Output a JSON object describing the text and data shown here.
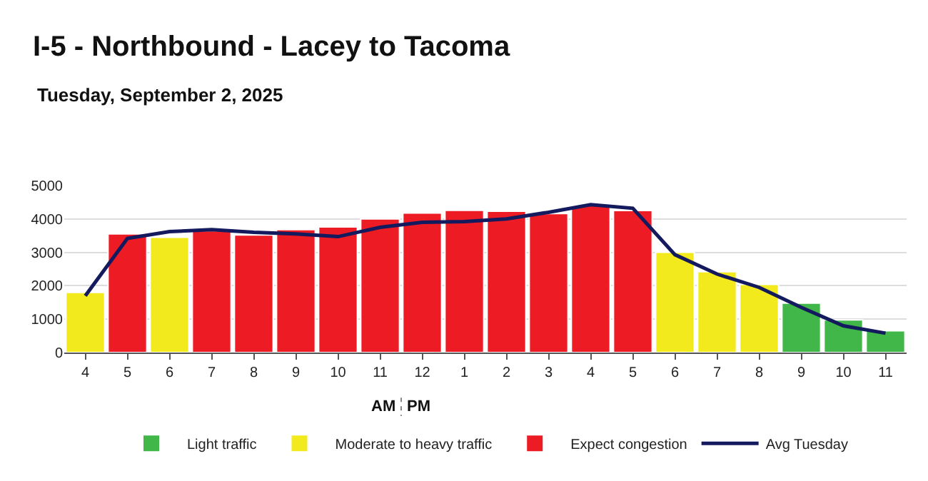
{
  "chart_data": {
    "type": "bar",
    "title": "I-5 - Northbound - Lacey to Tacoma",
    "subtitle": "Tuesday, September 2, 2025",
    "categories": [
      "4",
      "5",
      "6",
      "7",
      "8",
      "9",
      "10",
      "11",
      "12",
      "1",
      "2",
      "3",
      "4",
      "5",
      "6",
      "7",
      "8",
      "9",
      "10",
      "11"
    ],
    "series": [
      {
        "name": "Light traffic",
        "color": "#41b649",
        "values": [
          null,
          null,
          null,
          null,
          null,
          null,
          null,
          null,
          null,
          null,
          null,
          null,
          null,
          null,
          null,
          null,
          null,
          1480,
          980,
          650
        ]
      },
      {
        "name": "Moderate to heavy traffic",
        "color": "#f2ea1d",
        "values": [
          1800,
          null,
          3450,
          null,
          null,
          null,
          null,
          null,
          null,
          null,
          null,
          null,
          null,
          null,
          3000,
          2420,
          2040,
          null,
          null,
          null
        ]
      },
      {
        "name": "Expect congestion",
        "color": "#ed1c24",
        "values": [
          null,
          3550,
          null,
          3650,
          3520,
          3680,
          3760,
          4000,
          4180,
          4260,
          4230,
          4160,
          4400,
          4250,
          null,
          null,
          null,
          null,
          null,
          null
        ]
      },
      {
        "name": "Avg Tuesday",
        "type": "line",
        "color": "#141a5e",
        "values": [
          1700,
          3420,
          3620,
          3680,
          3600,
          3550,
          3470,
          3750,
          3900,
          3920,
          4000,
          4200,
          4430,
          4320,
          2930,
          2350,
          1950,
          1350,
          800,
          580
        ]
      }
    ],
    "annotations": [
      "AM",
      "PM"
    ],
    "ylim": [
      0,
      5000
    ],
    "yticks": [
      0,
      1000,
      2000,
      3000,
      4000,
      5000
    ],
    "grid": "y",
    "legend": "bottom"
  }
}
